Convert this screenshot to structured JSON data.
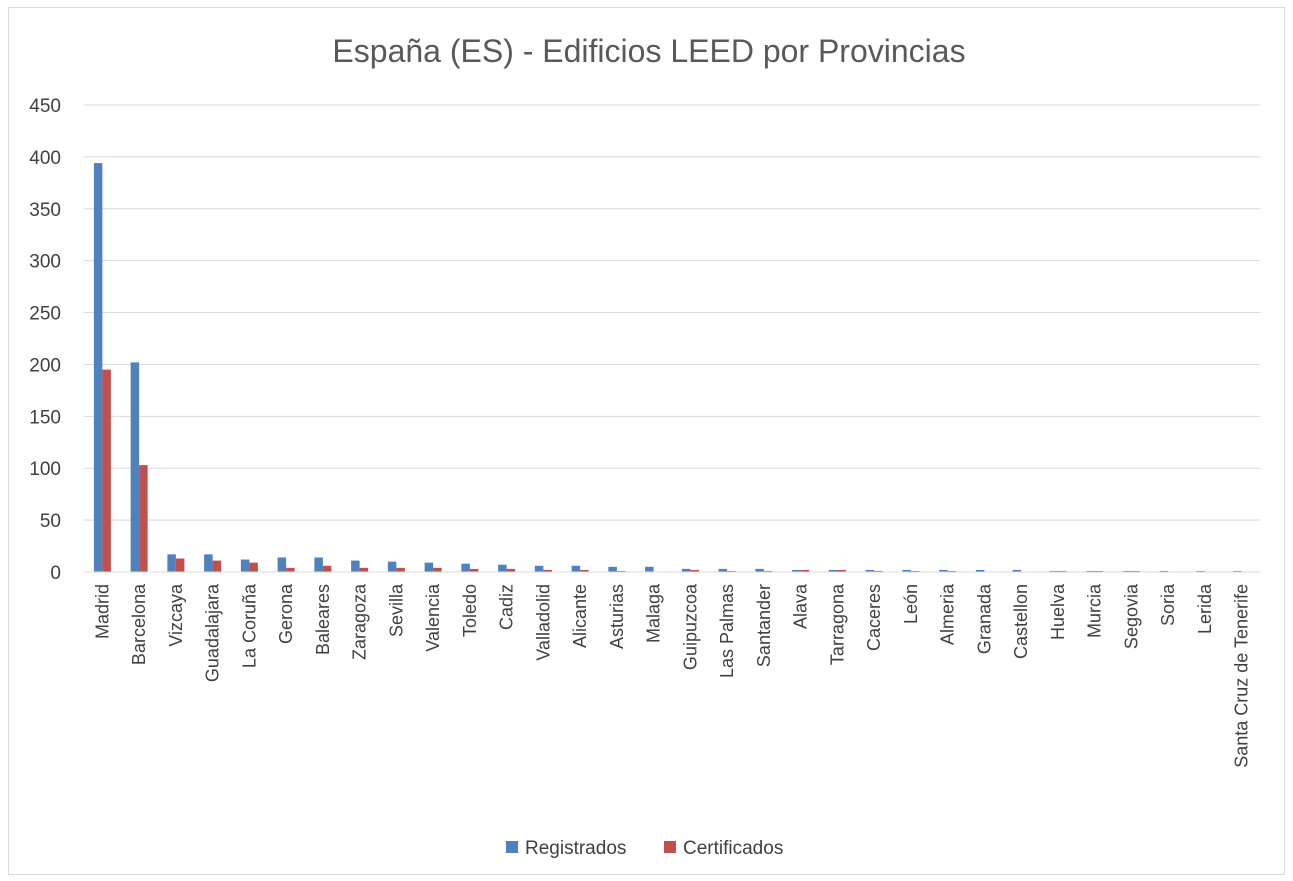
{
  "chart_data": {
    "type": "bar",
    "title": "España (ES) - Edificios LEED por Provincias",
    "xlabel": "",
    "ylabel": "",
    "ylim": [
      0,
      450
    ],
    "yticks": [
      0,
      50,
      100,
      150,
      200,
      250,
      300,
      350,
      400,
      450
    ],
    "grid": true,
    "legend_position": "bottom",
    "categories": [
      "Madrid",
      "Barcelona",
      "Vizcaya",
      "Guadalajara",
      "La Coruña",
      "Gerona",
      "Baleares",
      "Zaragoza",
      "Sevilla",
      "Valencia",
      "Toledo",
      "Cadiz",
      "Valladolid",
      "Alicante",
      "Asturias",
      "Malaga",
      "Guipuzcoa",
      "Las Palmas",
      "Santander",
      "Alava",
      "Tarragona",
      "Caceres",
      "León",
      "Almeria",
      "Granada",
      "Castellon",
      "Huelva",
      "Murcia",
      "Segovia",
      "Soria",
      "Lerida",
      "Santa Cruz de Tenerife"
    ],
    "series": [
      {
        "name": "Registrados",
        "color": "#4f81bd",
        "values": [
          394,
          202,
          17,
          17,
          12,
          14,
          14,
          11,
          10,
          9,
          8,
          7,
          6,
          6,
          5,
          5,
          3,
          3,
          3,
          2,
          2,
          2,
          2,
          2,
          2,
          2,
          1,
          1,
          1,
          1,
          1,
          1
        ]
      },
      {
        "name": "Certificados",
        "color": "#c0504d",
        "values": [
          195,
          103,
          13,
          11,
          9,
          4,
          6,
          4,
          4,
          4,
          3,
          3,
          2,
          2,
          1,
          0,
          2,
          1,
          1,
          2,
          2,
          1,
          1,
          1,
          0,
          0,
          1,
          1,
          1,
          0,
          0,
          0
        ]
      }
    ]
  }
}
